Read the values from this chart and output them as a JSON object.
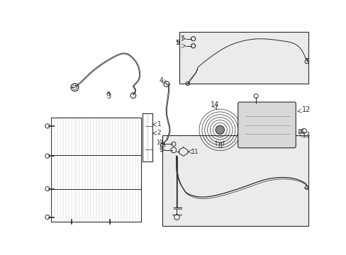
{
  "bg_color": "#ffffff",
  "line_color": "#2a2a2a",
  "box_fill": "#ebebeb",
  "figsize": [
    4.89,
    3.6
  ],
  "dpi": 100
}
